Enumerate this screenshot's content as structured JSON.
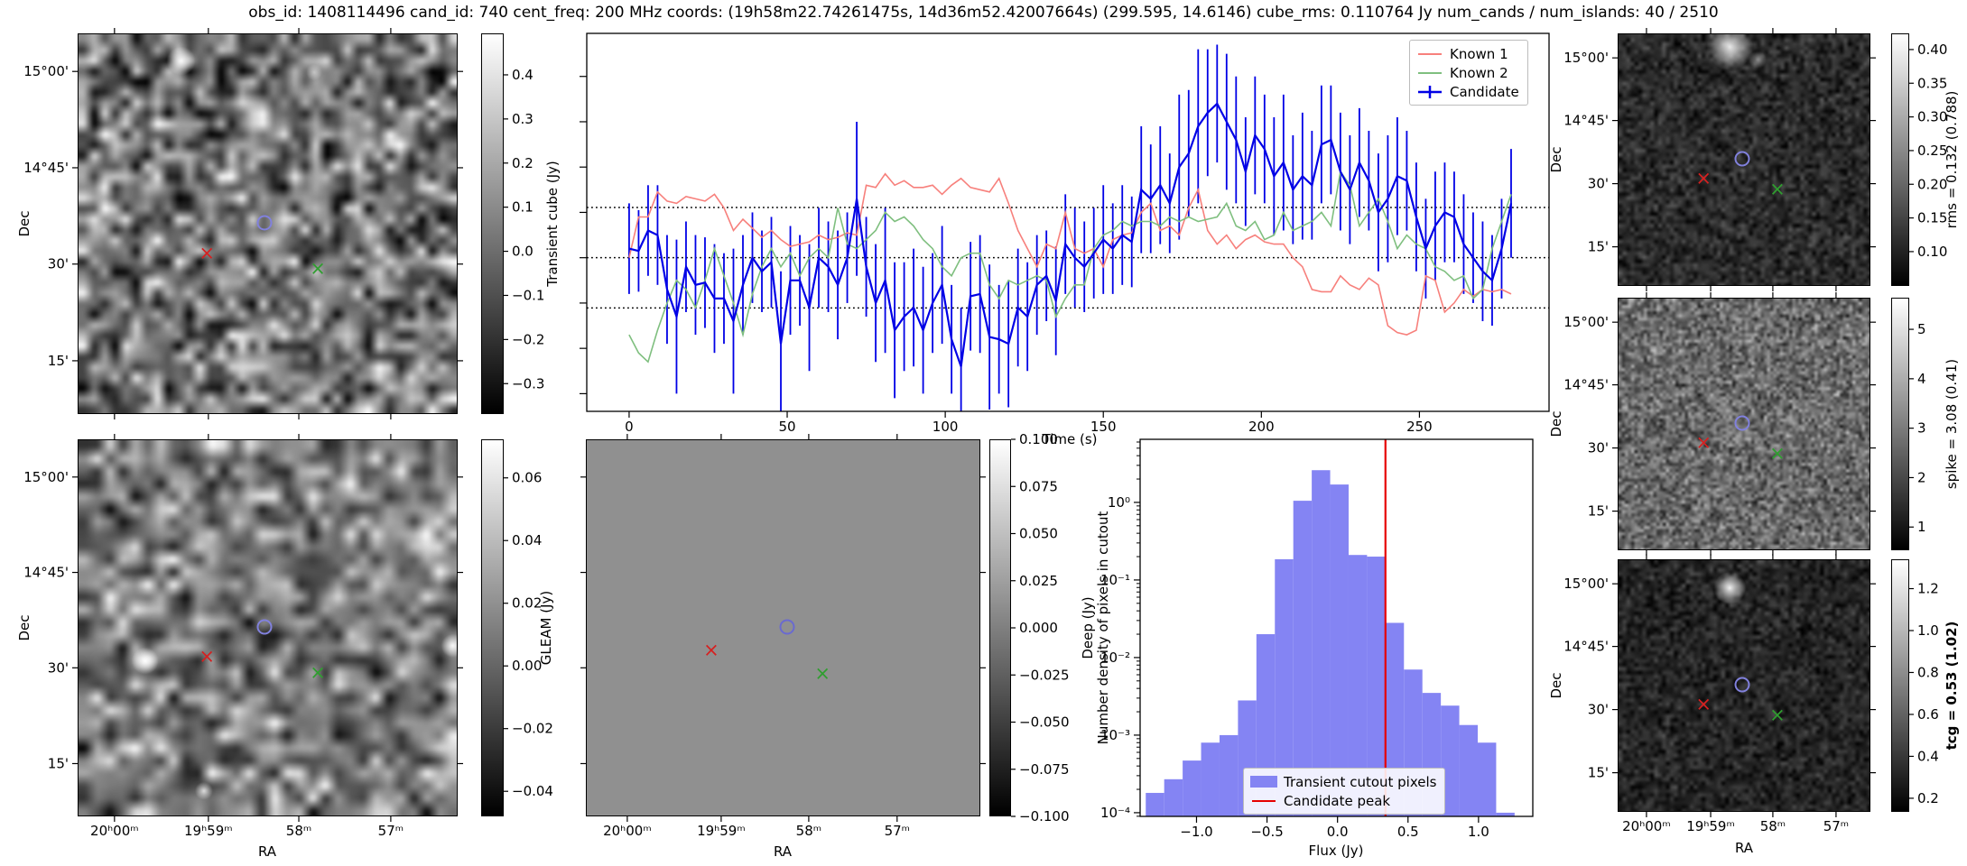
{
  "title": "obs_id: 1408114496 cand_id: 740 cent_freq: 200 MHz coords: (19h58m22.74261475s, 14d36m52.42007664s) (299.595, 14.6146) cube_rms: 0.110764 Jy num_cands / num_islands: 40 / 2510",
  "axis": {
    "dec_label": "Dec",
    "ra_label": "RA",
    "dec_ticks": [
      "15°00'",
      "14°45'",
      "30'",
      "15'"
    ],
    "ra_ticks": [
      "20ʰ00ᵐ",
      "19ʰ59ᵐ",
      "58ᵐ",
      "57ᵐ"
    ]
  },
  "chart_data": [
    {
      "type": "line",
      "name": "lightcurve",
      "xlabel": "Time (s)",
      "x_start": 0,
      "x_step": 3,
      "xlim": [
        -13.4,
        291
      ],
      "ylim": [
        -0.339,
        0.495
      ],
      "xticks": [
        0,
        50,
        100,
        150,
        200,
        250
      ],
      "xtick_labels": [
        "0",
        "50",
        "100",
        "150",
        "200",
        "250"
      ],
      "ytick_values_unlabeled": [
        0.4,
        0.3,
        0.2,
        0.1,
        0.0,
        -0.1,
        -0.2,
        -0.3
      ],
      "hlines": [
        0.110764,
        0.0,
        -0.110764
      ],
      "legend_position": "upper right",
      "series": [
        {
          "name": "Known 1",
          "color": "#f7807c",
          "values": [
            0.0,
            0.09,
            0.09,
            0.145,
            0.125,
            0.12,
            0.135,
            0.13,
            0.125,
            0.14,
            0.11,
            0.06,
            0.085,
            0.065,
            0.045,
            0.06,
            0.04,
            0.025,
            0.03,
            0.035,
            0.05,
            0.04,
            0.045,
            0.055,
            0.05,
            0.16,
            0.155,
            0.185,
            0.16,
            0.17,
            0.155,
            0.155,
            0.16,
            0.14,
            0.16,
            0.175,
            0.155,
            0.15,
            0.145,
            0.175,
            0.12,
            0.06,
            0.02,
            -0.02,
            0.03,
            0.02,
            0.1,
            0.02,
            0.01,
            0.02,
            -0.02,
            0.04,
            0.05,
            0.055,
            0.1,
            0.12,
            0.06,
            0.07,
            0.05,
            0.11,
            0.15,
            0.06,
            0.03,
            0.05,
            0.02,
            0.04,
            0.05,
            0.035,
            0.03,
            0.03,
            0.0,
            -0.02,
            -0.07,
            -0.075,
            -0.075,
            -0.04,
            -0.06,
            -0.07,
            -0.045,
            -0.06,
            -0.15,
            -0.165,
            -0.17,
            -0.16,
            -0.04,
            -0.05,
            -0.12,
            -0.1,
            -0.07,
            -0.085,
            -0.07,
            -0.075,
            -0.07,
            -0.08
          ]
        },
        {
          "name": "Known 2",
          "color": "#7fbf7f",
          "values": [
            -0.17,
            -0.21,
            -0.23,
            -0.16,
            -0.1,
            -0.05,
            -0.07,
            -0.11,
            -0.05,
            0.02,
            -0.04,
            -0.1,
            -0.17,
            -0.08,
            -0.02,
            0.02,
            -0.02,
            0.01,
            -0.04,
            0.0,
            0.02,
            0.0,
            0.11,
            0.03,
            0.02,
            0.04,
            0.06,
            0.1,
            0.08,
            0.09,
            0.07,
            0.04,
            0.02,
            -0.02,
            -0.04,
            0.0,
            0.01,
            0.01,
            -0.06,
            -0.09,
            -0.05,
            -0.06,
            -0.05,
            -0.04,
            -0.05,
            -0.13,
            -0.09,
            -0.06,
            -0.06,
            0.02,
            0.05,
            0.06,
            0.08,
            0.07,
            0.08,
            0.08,
            0.07,
            0.09,
            0.08,
            0.09,
            0.08,
            0.085,
            0.09,
            0.12,
            0.07,
            0.06,
            0.08,
            0.04,
            0.05,
            0.1,
            0.06,
            0.07,
            0.08,
            0.1,
            0.07,
            0.19,
            0.16,
            0.07,
            0.1,
            0.13,
            0.08,
            0.02,
            0.05,
            0.03,
            0.02,
            -0.02,
            -0.03,
            -0.05,
            -0.04,
            -0.09,
            -0.07,
            0.02,
            0.08,
            0.14
          ]
        },
        {
          "name": "Candidate",
          "color": "#0000e6",
          "values": [
            0.02,
            0.015,
            0.06,
            0.05,
            -0.07,
            -0.13,
            -0.02,
            -0.06,
            -0.055,
            -0.09,
            -0.09,
            -0.14,
            -0.06,
            0.0,
            -0.03,
            -0.01,
            -0.19,
            -0.05,
            -0.05,
            -0.11,
            0.0,
            -0.02,
            -0.06,
            0.0,
            0.13,
            -0.02,
            -0.1,
            -0.05,
            -0.16,
            -0.13,
            -0.11,
            -0.16,
            -0.1,
            -0.06,
            -0.18,
            -0.24,
            -0.085,
            -0.08,
            -0.175,
            -0.18,
            -0.19,
            -0.11,
            -0.13,
            -0.06,
            -0.04,
            -0.095,
            0.03,
            0.0,
            -0.02,
            0.01,
            0.04,
            0.02,
            0.05,
            0.035,
            0.15,
            0.13,
            0.16,
            0.12,
            0.2,
            0.23,
            0.29,
            0.32,
            0.34,
            0.3,
            0.26,
            0.19,
            0.27,
            0.24,
            0.18,
            0.21,
            0.15,
            0.18,
            0.16,
            0.25,
            0.26,
            0.19,
            0.15,
            0.21,
            0.17,
            0.1,
            0.13,
            0.18,
            0.17,
            0.09,
            0.02,
            0.07,
            0.1,
            0.09,
            0.03,
            0.0,
            -0.03,
            -0.05,
            0.02,
            0.12
          ],
          "errors": [
            0.1,
            0.09,
            0.1,
            0.11,
            0.12,
            0.17,
            0.1,
            0.11,
            0.1,
            0.12,
            0.1,
            0.16,
            0.11,
            0.1,
            0.09,
            0.1,
            0.16,
            0.12,
            0.1,
            0.14,
            0.11,
            0.1,
            0.12,
            0.1,
            0.17,
            0.11,
            0.13,
            0.16,
            0.15,
            0.12,
            0.13,
            0.14,
            0.11,
            0.13,
            0.12,
            0.13,
            0.12,
            0.13,
            0.16,
            0.12,
            0.14,
            0.13,
            0.12,
            0.11,
            0.1,
            0.12,
            0.11,
            0.11,
            0.1,
            0.1,
            0.12,
            0.1,
            0.11,
            0.1,
            0.14,
            0.12,
            0.13,
            0.11,
            0.16,
            0.14,
            0.17,
            0.14,
            0.13,
            0.15,
            0.14,
            0.12,
            0.13,
            0.12,
            0.13,
            0.15,
            0.12,
            0.14,
            0.12,
            0.13,
            0.12,
            0.13,
            0.12,
            0.12,
            0.11,
            0.13,
            0.14,
            0.13,
            0.11,
            0.12,
            0.11,
            0.12,
            0.11,
            0.1,
            0.11,
            0.1,
            0.11,
            0.1,
            0.11,
            0.12
          ]
        }
      ]
    },
    {
      "type": "bar",
      "name": "pixel-histogram",
      "xlabel": "Flux (Jy)",
      "ylabel": "Number density of pixels in cutout",
      "ylog": true,
      "bin_start": -1.36,
      "bin_width": 0.1308,
      "values": [
        0.00018,
        0.00027,
        0.00047,
        0.0008,
        0.001,
        0.0028,
        0.02,
        0.185,
        1.05,
        2.6,
        1.7,
        0.21,
        0.2,
        0.028,
        0.007,
        0.0035,
        0.0024,
        0.00135,
        0.0008,
        0.0001
      ],
      "vline": 0.34,
      "vline_color": "#e60000",
      "bar_color": "#8484f3",
      "xlim": [
        -1.4,
        1.385
      ],
      "ylim_log_exponents": [
        -4.05,
        0.813
      ],
      "xticks": [
        -1.0,
        -0.5,
        0.0,
        0.5,
        1.0
      ],
      "xtick_labels": [
        "−1.0",
        "−0.5",
        "0.0",
        "0.5",
        "1.0"
      ],
      "ytick_values": [
        1,
        0.1,
        0.01,
        0.001,
        0.0001
      ],
      "ytick_labels": [
        "10⁰",
        "10⁻¹",
        "10⁻²",
        "10⁻³",
        "10⁻⁴"
      ],
      "legend": [
        "Transient cutout pixels",
        "Candidate peak"
      ],
      "legend_position": "lower center"
    }
  ],
  "panels": {
    "transient": {
      "name": "Transient cube cutout",
      "colorbar": {
        "label": "Transient cube (Jy)",
        "vmin": -0.369,
        "vmax": 0.494,
        "tick_values": [
          0.4,
          0.3,
          0.2,
          0.1,
          0.0,
          -0.1,
          -0.2,
          -0.3
        ],
        "tick_labels": [
          "0.4",
          "0.3",
          "0.2",
          "0.1",
          "0.0",
          "−0.1",
          "−0.2",
          "−0.3"
        ]
      },
      "markers": [
        {
          "type": "x",
          "color": "#d62020",
          "fx": 0.34,
          "fy": 0.58,
          "name": "known1-marker"
        },
        {
          "type": "o",
          "color": "#8181dd",
          "fx": 0.492,
          "fy": 0.498,
          "name": "candidate-marker"
        },
        {
          "type": "x",
          "color": "#2f9e2f",
          "fx": 0.632,
          "fy": 0.621,
          "name": "known2-marker"
        }
      ],
      "texture": {
        "seed": 11,
        "cells": 36,
        "mean": 0.47,
        "sd": 0.3,
        "blobs": [
          [
            0.27,
            0.07,
            16,
            0.95
          ],
          [
            0.62,
            0.1,
            9,
            0.5
          ]
        ]
      }
    },
    "gleam": {
      "name": "GLEAM cutout",
      "colorbar": {
        "label": "GLEAM (Jy)",
        "vmin": -0.048,
        "vmax": 0.0723,
        "tick_values": [
          0.06,
          0.04,
          0.02,
          0.0,
          -0.02,
          -0.04
        ],
        "tick_labels": [
          "0.06",
          "0.04",
          "0.02",
          "0.00",
          "−0.02",
          "−0.04"
        ]
      },
      "markers": [
        {
          "type": "x",
          "color": "#d62020",
          "fx": 0.34,
          "fy": 0.58,
          "name": "known1-marker"
        },
        {
          "type": "o",
          "color": "#8181dd",
          "fx": 0.492,
          "fy": 0.498,
          "name": "candidate-marker"
        },
        {
          "type": "x",
          "color": "#2f9e2f",
          "fx": 0.632,
          "fy": 0.621,
          "name": "known2-marker"
        }
      ],
      "texture": {
        "seed": 23,
        "cells": 30,
        "mean": 0.5,
        "sd": 0.27,
        "blobs": [
          [
            0.175,
            0.585,
            15,
            1.0
          ],
          [
            0.985,
            0.545,
            13,
            0.95
          ],
          [
            0.33,
            0.93,
            10,
            0.8
          ]
        ]
      }
    },
    "deep": {
      "name": "Deep image cutout",
      "flat_color": "#909090",
      "colorbar": {
        "label": "Deep (Jy)",
        "vmin": -0.1,
        "vmax": 0.1,
        "tick_values": [
          0.1,
          0.075,
          0.05,
          0.025,
          0.0,
          -0.025,
          -0.05,
          -0.075,
          -0.1
        ],
        "tick_labels": [
          "0.100",
          "0.075",
          "0.050",
          "0.025",
          "0.000",
          "−0.025",
          "−0.050",
          "−0.075",
          "−0.100"
        ]
      },
      "markers": [
        {
          "type": "x",
          "color": "#d62020",
          "fx": 0.318,
          "fy": 0.563,
          "name": "known1-marker"
        },
        {
          "type": "o",
          "color": "#6a6ad0",
          "fx": 0.51,
          "fy": 0.498,
          "name": "candidate-marker"
        },
        {
          "type": "x",
          "color": "#2f9e2f",
          "fx": 0.6,
          "fy": 0.625,
          "name": "known2-marker"
        }
      ]
    },
    "rms": {
      "name": "rms map",
      "colorbar": {
        "label": "rms = 0.132 (0.788)",
        "vmin": 0.049,
        "vmax": 0.424,
        "tick_values": [
          0.4,
          0.35,
          0.3,
          0.25,
          0.2,
          0.15,
          0.1
        ],
        "tick_labels": [
          "0.40",
          "0.35",
          "0.30",
          "0.25",
          "0.20",
          "0.15",
          "0.10"
        ]
      },
      "markers": [
        {
          "type": "x",
          "color": "#d62020",
          "fx": 0.34,
          "fy": 0.58,
          "name": "known1-marker"
        },
        {
          "type": "o",
          "color": "#8181dd",
          "fx": 0.492,
          "fy": 0.498,
          "name": "candidate-marker"
        },
        {
          "type": "x",
          "color": "#2f9e2f",
          "fx": 0.632,
          "fy": 0.621,
          "name": "known2-marker"
        }
      ],
      "texture": {
        "seed": 37,
        "cells": 64,
        "mean": 0.17,
        "sd": 0.1,
        "blobs": [
          [
            0.44,
            0.05,
            26,
            0.9
          ],
          [
            0.55,
            0.1,
            10,
            0.4
          ]
        ]
      }
    },
    "spike": {
      "name": "spike map",
      "colorbar": {
        "label": "spike = 3.08 (0.41)",
        "vmin": 0.53,
        "vmax": 5.64,
        "tick_values": [
          5,
          4,
          3,
          2,
          1
        ],
        "tick_labels": [
          "5",
          "4",
          "3",
          "2",
          "1"
        ]
      },
      "markers": [
        {
          "type": "x",
          "color": "#d62020",
          "fx": 0.34,
          "fy": 0.58,
          "name": "known1-marker"
        },
        {
          "type": "o",
          "color": "#8181dd",
          "fx": 0.492,
          "fy": 0.498,
          "name": "candidate-marker"
        },
        {
          "type": "x",
          "color": "#2f9e2f",
          "fx": 0.632,
          "fy": 0.621,
          "name": "known2-marker"
        }
      ],
      "texture": {
        "seed": 53,
        "cells": 80,
        "mean": 0.42,
        "sd": 0.17,
        "blobs": []
      }
    },
    "tcg": {
      "name": "tcg map",
      "colorbar": {
        "label": "tcg = 0.53 (1.02)",
        "bold": true,
        "vmin": 0.135,
        "vmax": 1.34,
        "tick_values": [
          1.2,
          1.0,
          0.8,
          0.6,
          0.4,
          0.2
        ],
        "tick_labels": [
          "1.2",
          "1.0",
          "0.8",
          "0.6",
          "0.4",
          "0.2"
        ]
      },
      "markers": [
        {
          "type": "x",
          "color": "#d62020",
          "fx": 0.34,
          "fy": 0.58,
          "name": "known1-marker"
        },
        {
          "type": "o",
          "color": "#8181dd",
          "fx": 0.492,
          "fy": 0.498,
          "name": "candidate-marker"
        },
        {
          "type": "x",
          "color": "#2f9e2f",
          "fx": 0.632,
          "fy": 0.621,
          "name": "known2-marker"
        }
      ],
      "texture": {
        "seed": 71,
        "cells": 64,
        "mean": 0.15,
        "sd": 0.09,
        "blobs": [
          [
            0.44,
            0.11,
            18,
            0.95
          ]
        ]
      }
    }
  }
}
